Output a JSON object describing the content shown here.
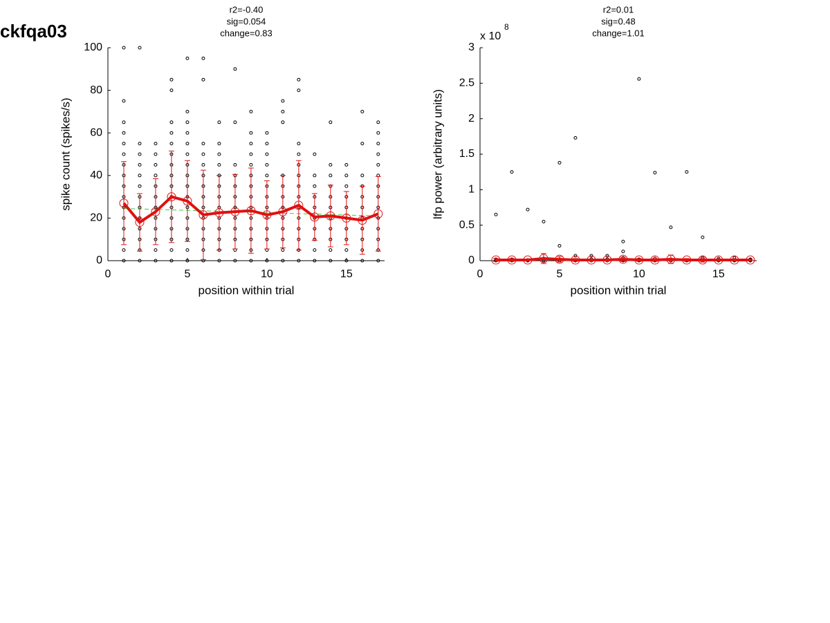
{
  "figure_title": "ckfqa03",
  "chart_data": [
    {
      "type": "scatter",
      "title": [
        "r2=-0.40",
        "sig=0.054",
        "change=0.83"
      ],
      "xlabel": "position within trial",
      "ylabel": "spike count (spikes/s)",
      "xlim": [
        0,
        17.4
      ],
      "ylim": [
        0,
        100
      ],
      "xticks": [
        0,
        5,
        10,
        15
      ],
      "yticks": [
        0,
        20,
        40,
        60,
        80,
        100
      ],
      "x": [
        1,
        2,
        3,
        4,
        5,
        6,
        7,
        8,
        9,
        10,
        11,
        12,
        13,
        14,
        15,
        16,
        17
      ],
      "trial_color": "#000000",
      "trials": [
        [
          100,
          75,
          65,
          60,
          55,
          50,
          45,
          40,
          35,
          30,
          25,
          20,
          15,
          10,
          5,
          0
        ],
        [
          100,
          55,
          50,
          45,
          40,
          35,
          30,
          25,
          20,
          15,
          10,
          5,
          0
        ],
        [
          55,
          50,
          45,
          40,
          35,
          30,
          25,
          20,
          15,
          10,
          5,
          0
        ],
        [
          85,
          80,
          65,
          60,
          55,
          50,
          45,
          40,
          35,
          30,
          25,
          20,
          15,
          10,
          5,
          0
        ],
        [
          95,
          70,
          65,
          60,
          55,
          50,
          45,
          40,
          35,
          30,
          25,
          20,
          15,
          10,
          5,
          0
        ],
        [
          95,
          85,
          55,
          50,
          45,
          40,
          35,
          30,
          25,
          20,
          15,
          10,
          5,
          0
        ],
        [
          65,
          55,
          50,
          45,
          40,
          35,
          30,
          25,
          20,
          15,
          10,
          5,
          0
        ],
        [
          90,
          65,
          45,
          40,
          35,
          30,
          25,
          20,
          15,
          10,
          5,
          0
        ],
        [
          70,
          60,
          55,
          50,
          45,
          40,
          35,
          30,
          25,
          20,
          15,
          10,
          5,
          0
        ],
        [
          60,
          55,
          50,
          45,
          40,
          35,
          30,
          25,
          20,
          15,
          10,
          5,
          0
        ],
        [
          75,
          70,
          65,
          40,
          35,
          30,
          25,
          20,
          15,
          10,
          5,
          0
        ],
        [
          85,
          80,
          55,
          50,
          45,
          40,
          35,
          30,
          25,
          20,
          15,
          10,
          5,
          0
        ],
        [
          50,
          40,
          35,
          30,
          25,
          20,
          15,
          10,
          5,
          0
        ],
        [
          65,
          45,
          40,
          35,
          30,
          25,
          20,
          15,
          10,
          5,
          0
        ],
        [
          45,
          40,
          35,
          30,
          25,
          20,
          15,
          10,
          5,
          0
        ],
        [
          70,
          55,
          40,
          35,
          30,
          25,
          20,
          15,
          10,
          5,
          0
        ],
        [
          65,
          60,
          55,
          50,
          45,
          40,
          35,
          30,
          25,
          20,
          15,
          10,
          5,
          0
        ]
      ],
      "mean_color": "#e01010",
      "mean_values": [
        27,
        18,
        23,
        30,
        28,
        21.5,
        22.5,
        23,
        23.5,
        21.5,
        23,
        26,
        20.5,
        21,
        20,
        19,
        22
      ],
      "mean_errors": [
        19.5,
        13.5,
        15.5,
        21.5,
        19,
        21,
        17.5,
        17.5,
        20,
        16,
        17,
        21,
        11,
        14.5,
        12.5,
        16,
        17.5
      ],
      "fit": {
        "x": [
          1,
          17
        ],
        "values": [
          24.5,
          21
        ],
        "color": "#33cc33"
      }
    },
    {
      "type": "scatter",
      "title": [
        "r2=0.01",
        "sig=0.48",
        "change=1.01"
      ],
      "xlabel": "position within trial",
      "ylabel": "lfp power (arbitrary units)",
      "y_exponent_prefix": "x 10",
      "y_exponent": "8",
      "xlim": [
        0,
        17.4
      ],
      "ylim": [
        0,
        3
      ],
      "xticks": [
        0,
        5,
        10,
        15
      ],
      "yticks": [
        0,
        0.5,
        1,
        1.5,
        2,
        2.5,
        3
      ],
      "x": [
        1,
        2,
        3,
        4,
        5,
        6,
        7,
        8,
        9,
        10,
        11,
        12,
        13,
        14,
        15,
        16,
        17
      ],
      "trial_color": "#000000",
      "trials": [
        [
          0.65,
          0.02,
          0
        ],
        [
          1.25,
          0.02,
          0
        ],
        [
          0.72,
          0.01,
          0
        ],
        [
          0.55,
          0.03,
          0
        ],
        [
          1.38,
          0.21,
          0.02,
          0
        ],
        [
          1.73,
          0.07,
          0.01,
          0
        ],
        [
          0.07,
          0.02,
          0
        ],
        [
          0.07,
          0.02,
          0
        ],
        [
          0.27,
          0.13,
          0.04,
          0
        ],
        [
          2.56,
          0.02,
          0
        ],
        [
          1.24,
          0.03,
          0
        ],
        [
          0.47,
          0.02,
          0
        ],
        [
          1.25,
          0.01,
          0
        ],
        [
          0.33,
          0.04,
          0
        ],
        [
          0.03,
          0.01,
          0
        ],
        [
          0.04,
          0.01,
          0
        ],
        [
          0.02,
          0.01,
          0
        ]
      ],
      "mean_color": "#e01010",
      "mean_values": [
        0.01,
        0.01,
        0.01,
        0.03,
        0.02,
        0.01,
        0.01,
        0.01,
        0.02,
        0.01,
        0.01,
        0.02,
        0.01,
        0.01,
        0.01,
        0.01,
        0.01
      ],
      "mean_errors": [
        0.02,
        0.02,
        0.01,
        0.07,
        0.04,
        0.02,
        0.01,
        0.01,
        0.03,
        0.02,
        0.02,
        0.06,
        0.02,
        0.03,
        0.01,
        0.01,
        0.01
      ]
    }
  ]
}
